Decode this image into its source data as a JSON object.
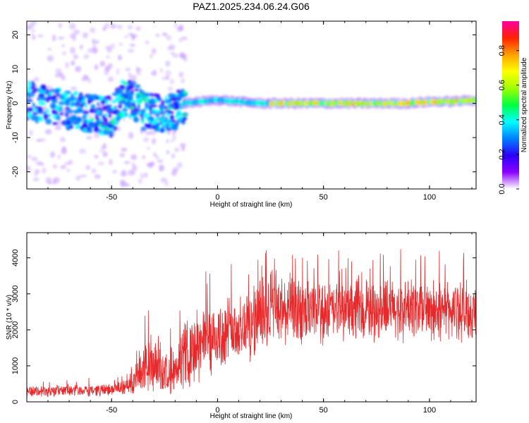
{
  "chart_data": [
    {
      "type": "heatmap",
      "title": "PAZ1.2025.234.06.24.G06",
      "xlabel": "Height of straight line (km)",
      "ylabel": "Frequency (Hz)",
      "xlim": [
        -90,
        122
      ],
      "ylim": [
        -25,
        24
      ],
      "xticks": [
        -50,
        0,
        50,
        100
      ],
      "yticks": [
        -20,
        -10,
        0,
        10,
        20
      ],
      "colorbar": {
        "label": "Normalized spectral amplitude",
        "range": [
          0.0,
          0.97
        ],
        "ticks": [
          0.0,
          0.2,
          0.4,
          0.6,
          0.8
        ],
        "colors": [
          "#ffffff",
          "#8a00ff",
          "#2a00ff",
          "#0080ff",
          "#00ffff",
          "#00ff40",
          "#a0ff00",
          "#ffff00",
          "#ffa000",
          "#ff2000",
          "#ff00a0"
        ]
      },
      "ridge_center_hz": [
        [
          -90,
          1
        ],
        [
          -80,
          -1
        ],
        [
          -70,
          -2
        ],
        [
          -60,
          -3
        ],
        [
          -50,
          -4
        ],
        [
          -44,
          2
        ],
        [
          -40,
          1
        ],
        [
          -35,
          -2
        ],
        [
          -30,
          -3
        ],
        [
          -25,
          -3
        ],
        [
          -20,
          -2
        ],
        [
          -16,
          0
        ],
        [
          0,
          1
        ],
        [
          10,
          0.5
        ],
        [
          20,
          0
        ],
        [
          30,
          0
        ],
        [
          40,
          0
        ],
        [
          50,
          0
        ],
        [
          60,
          0
        ],
        [
          70,
          0
        ],
        [
          80,
          0
        ],
        [
          90,
          0
        ],
        [
          100,
          0.5
        ],
        [
          110,
          0.5
        ],
        [
          122,
          1
        ]
      ]
    },
    {
      "type": "line",
      "title": "",
      "xlabel": "Height of straight line (km)",
      "ylabel": "SNR (10 * v/v)",
      "xlim": [
        -90,
        122
      ],
      "ylim": [
        0,
        4700
      ],
      "xticks": [
        -50,
        0,
        50,
        100
      ],
      "yticks": [
        0,
        1000,
        2000,
        3000,
        4000
      ],
      "series": [
        {
          "name": "SNR",
          "color": "#e8282a",
          "x": [
            -90,
            -80,
            -70,
            -60,
            -50,
            -45,
            -40,
            -35,
            -32,
            -30,
            -28,
            -25,
            -20,
            -15,
            -10,
            -5,
            0,
            5,
            10,
            15,
            20,
            25,
            28,
            30,
            35,
            40,
            45,
            50,
            55,
            60,
            65,
            70,
            75,
            80,
            85,
            90,
            95,
            100,
            105,
            110,
            115,
            122
          ],
          "mean": [
            300,
            300,
            320,
            330,
            330,
            380,
            550,
            900,
            1100,
            800,
            900,
            800,
            1000,
            1300,
            1500,
            1700,
            1800,
            1900,
            2000,
            2200,
            2300,
            2600,
            2700,
            2500,
            2500,
            2500,
            2450,
            2500,
            2550,
            2500,
            2500,
            2550,
            2600,
            2550,
            2550,
            2600,
            2600,
            2500,
            2550,
            2550,
            2500,
            2500
          ],
          "spread": [
            150,
            150,
            160,
            160,
            160,
            200,
            350,
            600,
            900,
            700,
            700,
            500,
            700,
            900,
            1000,
            1000,
            1000,
            1000,
            1000,
            1000,
            1000,
            1100,
            1200,
            1000,
            900,
            900,
            800,
            800,
            800,
            800,
            800,
            800,
            800,
            800,
            800,
            800,
            800,
            800,
            800,
            800,
            800,
            800
          ]
        }
      ]
    }
  ]
}
